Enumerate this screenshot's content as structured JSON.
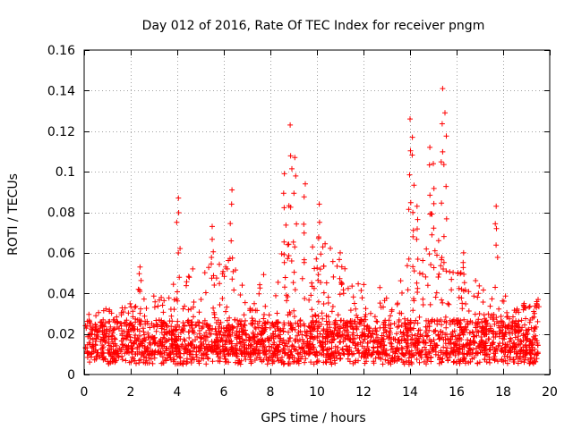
{
  "chart_data": {
    "type": "scatter",
    "title": "Day 012 of 2016, Rate Of TEC Index for receiver pngm",
    "xlabel": "GPS time / hours",
    "ylabel": "ROTI / TECUs",
    "xlim": [
      0,
      20
    ],
    "ylim": [
      0,
      0.16
    ],
    "grid": true,
    "marker": "+",
    "color": "#ff0000",
    "x_ticks": [
      0,
      2,
      4,
      6,
      8,
      10,
      12,
      14,
      16,
      18,
      20
    ],
    "x_tick_labels": [
      "0",
      "2",
      "4",
      "6",
      "8",
      "10",
      "12",
      "14",
      "16",
      "18",
      "20"
    ],
    "y_ticks": [
      0,
      0.02,
      0.04,
      0.06,
      0.08,
      0.1,
      0.12,
      0.14,
      0.16
    ],
    "y_tick_labels": [
      "0",
      "0.02",
      "0.04",
      "0.06",
      "0.08",
      "0.1",
      "0.12",
      "0.14",
      "0.16"
    ],
    "series": [
      {
        "name": "ROTI",
        "x_range": [
          0.05,
          19.5
        ],
        "baseline_mean": 0.016,
        "envelope": {
          "x": [
            0,
            1,
            2,
            3,
            3.5,
            4,
            4.5,
            5,
            5.5,
            6,
            6.5,
            7,
            7.5,
            8,
            8.5,
            9,
            9.5,
            10,
            10.5,
            11,
            11.5,
            12,
            12.5,
            13,
            13.5,
            14,
            14.5,
            15,
            15.5,
            16,
            16.5,
            17,
            17.5,
            18,
            18.5,
            19,
            19.5
          ],
          "max": [
            0.031,
            0.033,
            0.036,
            0.04,
            0.044,
            0.048,
            0.05,
            0.058,
            0.06,
            0.055,
            0.06,
            0.043,
            0.045,
            0.055,
            0.065,
            0.07,
            0.075,
            0.07,
            0.065,
            0.055,
            0.05,
            0.045,
            0.043,
            0.043,
            0.043,
            0.06,
            0.065,
            0.075,
            0.06,
            0.055,
            0.055,
            0.045,
            0.04,
            0.04,
            0.035,
            0.033,
            0.036
          ]
        },
        "peaks": [
          {
            "x": 2.4,
            "y": 0.053
          },
          {
            "x": 4.05,
            "y": 0.087
          },
          {
            "x": 5.5,
            "y": 0.073
          },
          {
            "x": 6.35,
            "y": 0.091
          },
          {
            "x": 8.6,
            "y": 0.099
          },
          {
            "x": 8.85,
            "y": 0.123
          },
          {
            "x": 9.05,
            "y": 0.107
          },
          {
            "x": 9.5,
            "y": 0.094
          },
          {
            "x": 10.1,
            "y": 0.084
          },
          {
            "x": 11.0,
            "y": 0.06
          },
          {
            "x": 14.0,
            "y": 0.126
          },
          {
            "x": 14.1,
            "y": 0.117
          },
          {
            "x": 14.3,
            "y": 0.083
          },
          {
            "x": 14.85,
            "y": 0.112
          },
          {
            "x": 15.0,
            "y": 0.104
          },
          {
            "x": 15.4,
            "y": 0.141
          },
          {
            "x": 15.5,
            "y": 0.129
          },
          {
            "x": 16.3,
            "y": 0.06
          },
          {
            "x": 17.7,
            "y": 0.083
          },
          {
            "x": 18.9,
            "y": 0.035
          },
          {
            "x": 19.5,
            "y": 0.037
          }
        ]
      }
    ]
  }
}
